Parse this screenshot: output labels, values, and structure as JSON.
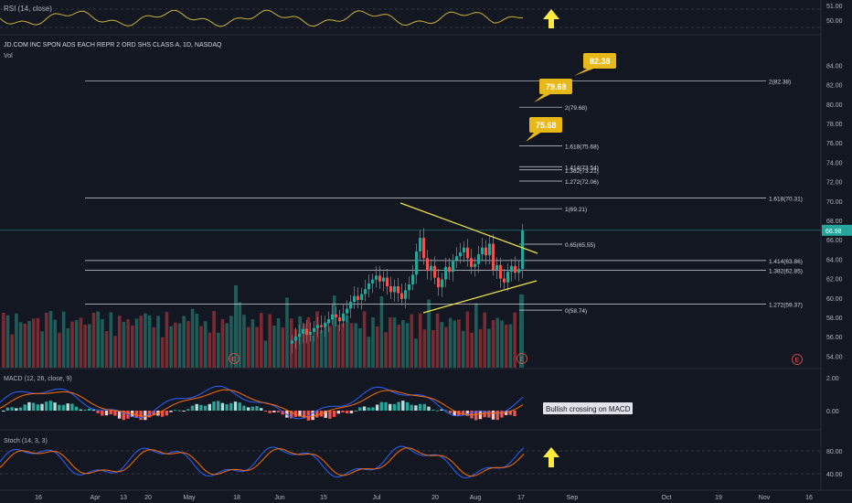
{
  "colors": {
    "bg": "#131722",
    "grid": "#1e222d",
    "up": "#26a69a",
    "down": "#ef5350",
    "fib": "#d1d4dc",
    "gold": "#e8b818",
    "yellow_line": "#f0e442",
    "rsi": "#c8b036",
    "macd": "#2962ff",
    "signal": "#ff6d00",
    "stoch_k": "#2962ff",
    "stoch_d": "#ff6d00",
    "arrow": "#ffeb3b",
    "last_price_bg": "#26a69a"
  },
  "header": {
    "rsi_label": "RSI (14, close)",
    "title": "JD.COM INC SPON ADS EACH REPR 2 ORD SHS CLASS A, 1D, NASDAQ",
    "vol_label": "Vol",
    "macd_label": "MACD (12, 26, close, 9)",
    "stoch_label": "Stoch (14, 3, 3)"
  },
  "rsi_axis": [
    "51.00",
    "50.00"
  ],
  "macd_axis": [
    "2.00",
    "0.00"
  ],
  "stoch_axis": [
    "80.00",
    "40.00"
  ],
  "price_axis": [
    "84.00",
    "82.00",
    "80.00",
    "78.00",
    "76.00",
    "74.00",
    "72.00",
    "70.00",
    "68.00",
    "66.00",
    "64.00",
    "62.00",
    "60.00",
    "58.00",
    "56.00",
    "54.00"
  ],
  "last_price": "66.98",
  "x_axis": [
    "16",
    "Apr",
    "13",
    "20",
    "May",
    "18",
    "Jun",
    "15",
    "Jul",
    "20",
    "Aug",
    "17",
    "Sep",
    "Oct",
    "19",
    "Nov",
    "16"
  ],
  "fib_levels": [
    {
      "label": "2(82.38)",
      "price": 82.38,
      "span": "wide"
    },
    {
      "label": "2(79.68)",
      "price": 79.68,
      "span": "short"
    },
    {
      "label": "1.618(75.68)",
      "price": 75.68,
      "span": "short"
    },
    {
      "label": "1.414(73.54)",
      "price": 73.54,
      "span": "short"
    },
    {
      "label": "1.382(73.21)",
      "price": 73.21,
      "span": "short"
    },
    {
      "label": "1.272(72.06)",
      "price": 72.06,
      "span": "short"
    },
    {
      "label": "1.618(70.31)",
      "price": 70.31,
      "span": "wide"
    },
    {
      "label": "1(69.21)",
      "price": 69.21,
      "span": "short"
    },
    {
      "label": "0.65(65.55)",
      "price": 65.55,
      "span": "short"
    },
    {
      "label": "1.414(63.86)",
      "price": 63.86,
      "span": "wide"
    },
    {
      "label": "1.382(62.85)",
      "price": 62.85,
      "span": "wide"
    },
    {
      "label": "1.272(59.37)",
      "price": 59.37,
      "span": "wide"
    },
    {
      "label": "0(58.74)",
      "price": 58.74,
      "span": "short"
    }
  ],
  "callouts": [
    "82.38",
    "79.68",
    "75.68"
  ],
  "annotation": "Bullish crossing on MACD",
  "markers": [
    "E",
    "E",
    "E"
  ],
  "chart_data": {
    "type": "candlestick",
    "symbol": "JD",
    "exchange": "NASDAQ",
    "interval": "1D",
    "ylim": [
      53,
      86
    ],
    "closes": [
      55.6,
      56.0,
      56.3,
      56.8,
      56.2,
      56.5,
      56.9,
      57.2,
      57.0,
      57.4,
      57.8,
      58.3,
      58.0,
      57.6,
      58.4,
      58.9,
      59.6,
      60.2,
      59.8,
      60.4,
      60.9,
      61.5,
      61.9,
      62.3,
      61.7,
      62.1,
      61.2,
      60.6,
      61.2,
      60.5,
      59.9,
      60.8,
      61.4,
      62.4,
      64.8,
      66.2,
      64.1,
      62.8,
      63.3,
      62.1,
      61.1,
      61.9,
      63.2,
      62.7,
      63.9,
      64.3,
      64.7,
      65.2,
      64.1,
      63.2,
      63.5,
      64.5,
      65.2,
      64.4,
      65.6,
      62.9,
      63.4,
      62.0,
      61.6,
      62.7,
      63.3,
      62.6,
      63.0,
      66.98
    ],
    "macd_values": [
      0.0,
      0.2,
      0.5,
      0.9,
      1.3,
      1.7,
      1.9,
      1.7,
      1.4,
      1.0,
      0.6,
      0.3,
      0.2
    ],
    "stoch_values": [
      55,
      70,
      45,
      60,
      35,
      75,
      50,
      40,
      78,
      55,
      45,
      65,
      42,
      72,
      50,
      40,
      75,
      58
    ]
  }
}
